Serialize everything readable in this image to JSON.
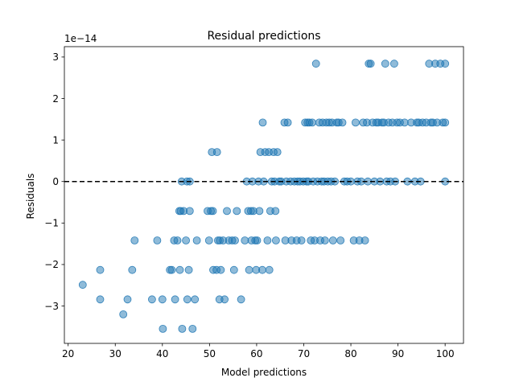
{
  "chart_data": {
    "type": "scatter",
    "title": "Residual predictions",
    "xlabel": "Model predictions",
    "ylabel": "Residuals",
    "offset_label": "1e−14",
    "xlim": [
      19.2,
      103.9
    ],
    "ylim": [
      -3.9,
      3.25
    ],
    "xticks": [
      20,
      30,
      40,
      50,
      60,
      70,
      80,
      90,
      100
    ],
    "yticks": [
      -3,
      -2,
      -1,
      0,
      1,
      2,
      3
    ],
    "ytick_labels": [
      "−3",
      "−2",
      "−1",
      "0",
      "1",
      "2",
      "3"
    ],
    "reference_line": {
      "y": 0,
      "style": "dashed",
      "color": "#000000"
    },
    "grid": false,
    "legend": "none",
    "point_color": "#1f77b4",
    "point_alpha": 0.5,
    "points": [
      [
        23.1,
        -2.49
      ],
      [
        26.8,
        -2.13
      ],
      [
        26.8,
        -2.84
      ],
      [
        31.7,
        -3.2
      ],
      [
        32.6,
        -2.84
      ],
      [
        33.6,
        -2.13
      ],
      [
        34.1,
        -1.42
      ],
      [
        37.8,
        -2.84
      ],
      [
        38.9,
        -1.42
      ],
      [
        40.0,
        -2.84
      ],
      [
        40.1,
        -3.55
      ],
      [
        41.6,
        -2.13
      ],
      [
        42.0,
        -2.13
      ],
      [
        42.5,
        -1.42
      ],
      [
        42.7,
        -2.84
      ],
      [
        43.2,
        -1.42
      ],
      [
        43.6,
        -0.71
      ],
      [
        43.7,
        -2.13
      ],
      [
        43.9,
        -0.71
      ],
      [
        44.1,
        0.0
      ],
      [
        44.2,
        -3.55
      ],
      [
        44.5,
        -0.71
      ],
      [
        45.0,
        -1.42
      ],
      [
        45.2,
        0.0
      ],
      [
        45.3,
        -2.84
      ],
      [
        45.6,
        -2.13
      ],
      [
        45.8,
        0.0
      ],
      [
        45.8,
        -0.71
      ],
      [
        46.4,
        -3.55
      ],
      [
        46.9,
        -2.84
      ],
      [
        47.3,
        -1.42
      ],
      [
        49.6,
        -0.71
      ],
      [
        49.9,
        -1.42
      ],
      [
        50.3,
        -0.71
      ],
      [
        50.5,
        0.71
      ],
      [
        50.7,
        -0.71
      ],
      [
        50.8,
        -2.13
      ],
      [
        51.5,
        -2.13
      ],
      [
        51.6,
        0.71
      ],
      [
        51.8,
        -1.42
      ],
      [
        52.1,
        -2.84
      ],
      [
        52.2,
        -1.42
      ],
      [
        52.4,
        -2.13
      ],
      [
        52.9,
        -1.42
      ],
      [
        53.2,
        -2.84
      ],
      [
        53.7,
        -0.71
      ],
      [
        54.1,
        -1.42
      ],
      [
        54.8,
        -1.42
      ],
      [
        55.2,
        -2.13
      ],
      [
        55.4,
        -1.42
      ],
      [
        55.8,
        -0.71
      ],
      [
        56.7,
        -2.84
      ],
      [
        57.5,
        -1.42
      ],
      [
        57.9,
        0.0
      ],
      [
        58.2,
        -0.71
      ],
      [
        58.4,
        -2.13
      ],
      [
        58.8,
        -0.71
      ],
      [
        58.9,
        -1.42
      ],
      [
        59.1,
        0.0
      ],
      [
        59.3,
        -0.71
      ],
      [
        59.7,
        -1.42
      ],
      [
        59.9,
        -2.13
      ],
      [
        60.1,
        -1.42
      ],
      [
        60.4,
        0.0
      ],
      [
        60.6,
        -0.71
      ],
      [
        60.8,
        0.71
      ],
      [
        61.2,
        -2.13
      ],
      [
        61.3,
        1.42
      ],
      [
        61.5,
        0.0
      ],
      [
        61.8,
        0.71
      ],
      [
        62.3,
        -1.42
      ],
      [
        62.6,
        0.71
      ],
      [
        62.7,
        -2.13
      ],
      [
        62.9,
        -0.71
      ],
      [
        63.2,
        0.0
      ],
      [
        63.6,
        0.71
      ],
      [
        63.8,
        0.0
      ],
      [
        64.0,
        -0.71
      ],
      [
        64.1,
        -1.42
      ],
      [
        64.4,
        0.71
      ],
      [
        64.8,
        0.0
      ],
      [
        65.2,
        0.0
      ],
      [
        65.9,
        1.42
      ],
      [
        66.1,
        -1.42
      ],
      [
        66.3,
        0.0
      ],
      [
        66.6,
        1.42
      ],
      [
        67.2,
        0.0
      ],
      [
        67.4,
        -1.42
      ],
      [
        68.0,
        0.0
      ],
      [
        68.5,
        -1.42
      ],
      [
        68.7,
        0.0
      ],
      [
        69.2,
        0.0
      ],
      [
        69.5,
        -1.42
      ],
      [
        69.9,
        0.0
      ],
      [
        70.3,
        1.42
      ],
      [
        70.6,
        0.0
      ],
      [
        70.8,
        1.42
      ],
      [
        71.0,
        0.0
      ],
      [
        71.2,
        1.42
      ],
      [
        71.5,
        -1.42
      ],
      [
        71.8,
        1.42
      ],
      [
        72.0,
        0.0
      ],
      [
        72.3,
        -1.42
      ],
      [
        72.6,
        2.84
      ],
      [
        72.9,
        0.0
      ],
      [
        73.3,
        1.42
      ],
      [
        73.5,
        -1.42
      ],
      [
        73.8,
        0.0
      ],
      [
        74.0,
        1.42
      ],
      [
        74.3,
        0.0
      ],
      [
        74.5,
        -1.42
      ],
      [
        74.8,
        1.42
      ],
      [
        75.1,
        0.0
      ],
      [
        75.4,
        1.42
      ],
      [
        75.8,
        0.0
      ],
      [
        76.0,
        1.42
      ],
      [
        76.2,
        -1.42
      ],
      [
        76.6,
        0.0
      ],
      [
        77.0,
        1.42
      ],
      [
        77.4,
        1.42
      ],
      [
        77.8,
        -1.42
      ],
      [
        78.2,
        1.42
      ],
      [
        78.6,
        0.0
      ],
      [
        79.2,
        0.0
      ],
      [
        80.0,
        0.0
      ],
      [
        80.6,
        -1.42
      ],
      [
        81.0,
        1.42
      ],
      [
        81.4,
        0.0
      ],
      [
        81.8,
        -1.42
      ],
      [
        82.2,
        0.0
      ],
      [
        82.6,
        1.42
      ],
      [
        83.0,
        -1.42
      ],
      [
        83.4,
        1.42
      ],
      [
        83.6,
        0.0
      ],
      [
        83.8,
        2.84
      ],
      [
        84.2,
        2.84
      ],
      [
        84.6,
        1.42
      ],
      [
        85.0,
        0.0
      ],
      [
        85.4,
        1.42
      ],
      [
        85.8,
        1.42
      ],
      [
        86.2,
        0.0
      ],
      [
        86.6,
        1.42
      ],
      [
        87.0,
        1.42
      ],
      [
        87.3,
        2.84
      ],
      [
        87.6,
        0.0
      ],
      [
        88.0,
        1.42
      ],
      [
        88.4,
        0.0
      ],
      [
        88.8,
        1.42
      ],
      [
        89.2,
        2.84
      ],
      [
        89.4,
        0.0
      ],
      [
        89.8,
        1.42
      ],
      [
        90.4,
        1.42
      ],
      [
        91.4,
        1.42
      ],
      [
        92.0,
        0.0
      ],
      [
        92.8,
        1.42
      ],
      [
        93.6,
        0.0
      ],
      [
        94.0,
        1.42
      ],
      [
        94.4,
        1.42
      ],
      [
        94.8,
        0.0
      ],
      [
        95.2,
        1.42
      ],
      [
        96.0,
        1.42
      ],
      [
        96.6,
        2.84
      ],
      [
        97.0,
        1.42
      ],
      [
        97.4,
        1.42
      ],
      [
        97.9,
        2.84
      ],
      [
        98.3,
        1.42
      ],
      [
        99.0,
        2.84
      ],
      [
        99.5,
        1.42
      ],
      [
        100.0,
        2.84
      ],
      [
        100.0,
        1.42
      ],
      [
        100.0,
        0.0
      ]
    ]
  }
}
